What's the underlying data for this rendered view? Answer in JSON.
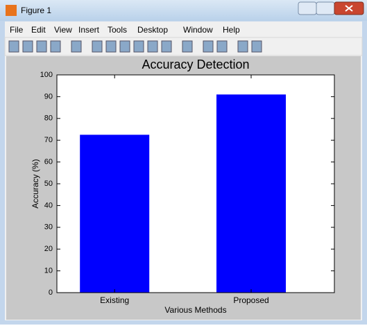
{
  "window": {
    "title": "Figure 1",
    "menu": [
      "File",
      "Edit",
      "View",
      "Insert",
      "Tools",
      "Desktop",
      "Window",
      "Help"
    ]
  },
  "chart_data": {
    "type": "bar",
    "title": "Accuracy Detection",
    "xlabel": "Various Methods",
    "ylabel": "Accuracy (%)",
    "categories": [
      "Existing",
      "Proposed"
    ],
    "values": [
      72.5,
      91
    ],
    "color": "#0000ff",
    "ylim": [
      0,
      100
    ],
    "yticks": [
      0,
      10,
      20,
      30,
      40,
      50,
      60,
      70,
      80,
      90,
      100
    ],
    "grid": false
  }
}
